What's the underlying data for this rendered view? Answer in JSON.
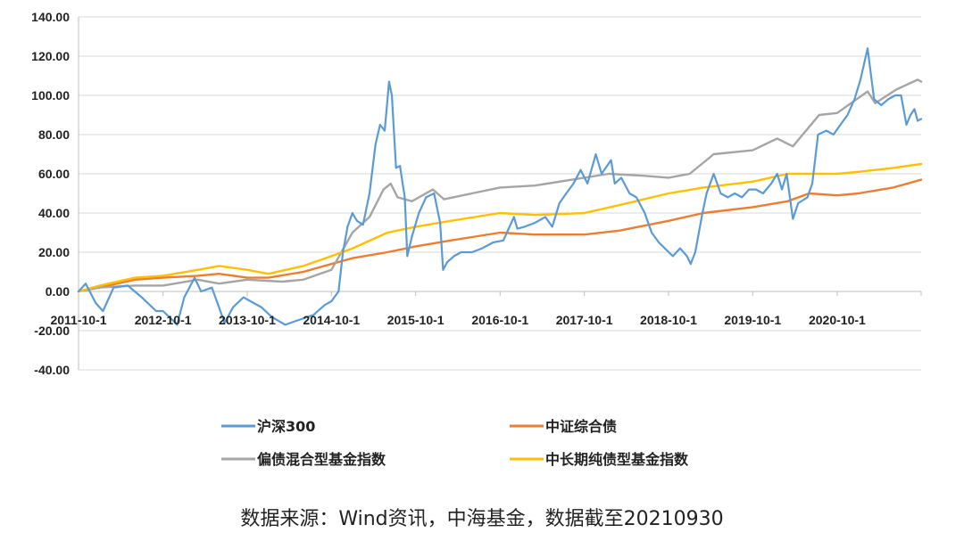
{
  "chart_data": {
    "type": "line",
    "ylim": [
      -40,
      140
    ],
    "y_ticks": [
      "140.00",
      "120.00",
      "100.00",
      "80.00",
      "60.00",
      "40.00",
      "20.00",
      "0.00",
      "-20.00",
      "-40.00"
    ],
    "y_tick_values": [
      140,
      120,
      100,
      80,
      60,
      40,
      20,
      0,
      -20,
      -40
    ],
    "x_range": [
      "2011-10-01",
      "2021-09-30"
    ],
    "x_ticks": [
      "2011-10-1",
      "2012-10-1",
      "2013-10-1",
      "2014-10-1",
      "2015-10-1",
      "2016-10-1",
      "2017-10-1",
      "2018-10-1",
      "2019-10-1",
      "2020-10-1"
    ],
    "x_tick_dates": [
      "2011-10-01",
      "2012-10-01",
      "2013-10-01",
      "2014-10-01",
      "2015-10-01",
      "2016-10-01",
      "2017-10-01",
      "2018-10-01",
      "2019-10-01",
      "2020-10-01"
    ],
    "grid": "horizontal",
    "legend_position": "bottom",
    "series": [
      {
        "name": "沪深300",
        "color": "#5B9BD5",
        "points": [
          [
            "2011-10-01",
            0
          ],
          [
            "2011-11-01",
            4
          ],
          [
            "2011-12-15",
            -6
          ],
          [
            "2012-01-15",
            -10
          ],
          [
            "2012-03-01",
            2
          ],
          [
            "2012-05-01",
            3
          ],
          [
            "2012-07-01",
            -3
          ],
          [
            "2012-09-01",
            -10
          ],
          [
            "2012-10-01",
            -10
          ],
          [
            "2012-11-15",
            -15
          ],
          [
            "2012-12-01",
            -17
          ],
          [
            "2013-01-01",
            -3
          ],
          [
            "2013-02-15",
            7
          ],
          [
            "2013-03-15",
            0
          ],
          [
            "2013-05-01",
            2
          ],
          [
            "2013-06-25",
            -16
          ],
          [
            "2013-08-01",
            -8
          ],
          [
            "2013-09-15",
            -3
          ],
          [
            "2013-10-15",
            -5
          ],
          [
            "2013-12-01",
            -8
          ],
          [
            "2014-01-15",
            -13
          ],
          [
            "2014-03-15",
            -17
          ],
          [
            "2014-05-01",
            -15
          ],
          [
            "2014-07-15",
            -12
          ],
          [
            "2014-09-01",
            -7
          ],
          [
            "2014-10-01",
            -5
          ],
          [
            "2014-11-01",
            0
          ],
          [
            "2014-11-20",
            20
          ],
          [
            "2014-12-10",
            33
          ],
          [
            "2014-12-31",
            40
          ],
          [
            "2015-01-20",
            36
          ],
          [
            "2015-02-15",
            34
          ],
          [
            "2015-03-15",
            50
          ],
          [
            "2015-04-10",
            75
          ],
          [
            "2015-04-30",
            85
          ],
          [
            "2015-05-20",
            82
          ],
          [
            "2015-06-08",
            107
          ],
          [
            "2015-06-20",
            100
          ],
          [
            "2015-07-08",
            63
          ],
          [
            "2015-07-25",
            64
          ],
          [
            "2015-08-15",
            48
          ],
          [
            "2015-08-26",
            18
          ],
          [
            "2015-09-15",
            28
          ],
          [
            "2015-10-15",
            40
          ],
          [
            "2015-11-15",
            48
          ],
          [
            "2015-12-20",
            50
          ],
          [
            "2016-01-15",
            35
          ],
          [
            "2016-01-28",
            11
          ],
          [
            "2016-02-15",
            15
          ],
          [
            "2016-03-15",
            18
          ],
          [
            "2016-04-15",
            20
          ],
          [
            "2016-06-01",
            20
          ],
          [
            "2016-07-15",
            22
          ],
          [
            "2016-09-01",
            25
          ],
          [
            "2016-10-15",
            26
          ],
          [
            "2016-11-30",
            38
          ],
          [
            "2016-12-15",
            32
          ],
          [
            "2017-01-15",
            33
          ],
          [
            "2017-03-01",
            35
          ],
          [
            "2017-04-15",
            38
          ],
          [
            "2017-05-15",
            33
          ],
          [
            "2017-06-15",
            45
          ],
          [
            "2017-07-15",
            50
          ],
          [
            "2017-08-15",
            55
          ],
          [
            "2017-09-15",
            62
          ],
          [
            "2017-10-15",
            55
          ],
          [
            "2017-11-20",
            70
          ],
          [
            "2017-12-15",
            60
          ],
          [
            "2018-01-25",
            67
          ],
          [
            "2018-02-10",
            55
          ],
          [
            "2018-03-10",
            58
          ],
          [
            "2018-04-15",
            50
          ],
          [
            "2018-05-15",
            48
          ],
          [
            "2018-06-20",
            40
          ],
          [
            "2018-07-20",
            30
          ],
          [
            "2018-08-20",
            25
          ],
          [
            "2018-09-15",
            22
          ],
          [
            "2018-10-20",
            18
          ],
          [
            "2018-11-20",
            22
          ],
          [
            "2018-12-20",
            18
          ],
          [
            "2019-01-05",
            14
          ],
          [
            "2019-01-25",
            20
          ],
          [
            "2019-02-25",
            40
          ],
          [
            "2019-03-15",
            50
          ],
          [
            "2019-04-15",
            60
          ],
          [
            "2019-05-15",
            50
          ],
          [
            "2019-06-15",
            48
          ],
          [
            "2019-07-15",
            50
          ],
          [
            "2019-08-15",
            48
          ],
          [
            "2019-09-15",
            52
          ],
          [
            "2019-10-15",
            52
          ],
          [
            "2019-11-15",
            50
          ],
          [
            "2019-12-20",
            55
          ],
          [
            "2020-01-15",
            60
          ],
          [
            "2020-02-05",
            52
          ],
          [
            "2020-02-25",
            60
          ],
          [
            "2020-03-23",
            37
          ],
          [
            "2020-04-15",
            45
          ],
          [
            "2020-05-25",
            48
          ],
          [
            "2020-06-15",
            55
          ],
          [
            "2020-07-10",
            80
          ],
          [
            "2020-08-15",
            82
          ],
          [
            "2020-09-15",
            80
          ],
          [
            "2020-10-15",
            85
          ],
          [
            "2020-11-15",
            90
          ],
          [
            "2020-12-15",
            98
          ],
          [
            "2021-01-10",
            108
          ],
          [
            "2021-02-10",
            124
          ],
          [
            "2021-02-25",
            110
          ],
          [
            "2021-03-10",
            98
          ],
          [
            "2021-04-10",
            95
          ],
          [
            "2021-05-10",
            98
          ],
          [
            "2021-06-10",
            100
          ],
          [
            "2021-07-05",
            100
          ],
          [
            "2021-07-28",
            85
          ],
          [
            "2021-08-15",
            90
          ],
          [
            "2021-09-01",
            93
          ],
          [
            "2021-09-15",
            87
          ],
          [
            "2021-09-30",
            88
          ]
        ]
      },
      {
        "name": "中证综合债",
        "color": "#ED7D31",
        "points": [
          [
            "2011-10-01",
            0
          ],
          [
            "2012-01-01",
            2
          ],
          [
            "2012-06-01",
            6
          ],
          [
            "2012-10-01",
            7
          ],
          [
            "2013-03-01",
            8
          ],
          [
            "2013-06-01",
            9
          ],
          [
            "2013-10-01",
            7
          ],
          [
            "2014-01-01",
            7
          ],
          [
            "2014-06-01",
            10
          ],
          [
            "2014-10-01",
            14
          ],
          [
            "2015-01-01",
            17
          ],
          [
            "2015-06-01",
            20
          ],
          [
            "2015-10-01",
            23
          ],
          [
            "2016-03-01",
            26
          ],
          [
            "2016-10-01",
            30
          ],
          [
            "2017-03-01",
            29
          ],
          [
            "2017-10-01",
            29
          ],
          [
            "2018-03-01",
            31
          ],
          [
            "2018-10-01",
            36
          ],
          [
            "2019-03-01",
            40
          ],
          [
            "2019-10-01",
            43
          ],
          [
            "2020-03-01",
            46
          ],
          [
            "2020-06-01",
            50
          ],
          [
            "2020-10-01",
            49
          ],
          [
            "2021-01-01",
            50
          ],
          [
            "2021-06-01",
            53
          ],
          [
            "2021-09-30",
            57
          ]
        ]
      },
      {
        "name": "偏债混合型基金指数",
        "color": "#A5A5A5",
        "points": [
          [
            "2011-10-01",
            0
          ],
          [
            "2012-01-01",
            2
          ],
          [
            "2012-06-01",
            3
          ],
          [
            "2012-10-01",
            3
          ],
          [
            "2013-03-01",
            6
          ],
          [
            "2013-06-01",
            4
          ],
          [
            "2013-10-01",
            6
          ],
          [
            "2014-03-01",
            5
          ],
          [
            "2014-06-01",
            6
          ],
          [
            "2014-10-01",
            11
          ],
          [
            "2014-12-31",
            30
          ],
          [
            "2015-03-15",
            38
          ],
          [
            "2015-05-15",
            52
          ],
          [
            "2015-06-15",
            55
          ],
          [
            "2015-07-15",
            48
          ],
          [
            "2015-09-15",
            46
          ],
          [
            "2015-12-15",
            52
          ],
          [
            "2016-02-01",
            47
          ],
          [
            "2016-06-01",
            50
          ],
          [
            "2016-10-01",
            53
          ],
          [
            "2017-03-01",
            54
          ],
          [
            "2017-10-01",
            58
          ],
          [
            "2018-01-15",
            60
          ],
          [
            "2018-06-15",
            59
          ],
          [
            "2018-10-01",
            58
          ],
          [
            "2019-01-01",
            60
          ],
          [
            "2019-04-15",
            70
          ],
          [
            "2019-10-01",
            72
          ],
          [
            "2020-01-15",
            78
          ],
          [
            "2020-03-23",
            74
          ],
          [
            "2020-07-15",
            90
          ],
          [
            "2020-10-01",
            91
          ],
          [
            "2021-02-10",
            102
          ],
          [
            "2021-03-15",
            96
          ],
          [
            "2021-06-15",
            103
          ],
          [
            "2021-09-15",
            108
          ],
          [
            "2021-09-30",
            107
          ]
        ]
      },
      {
        "name": "中长期纯债型基金指数",
        "color": "#FFC000",
        "points": [
          [
            "2011-10-01",
            0
          ],
          [
            "2012-01-01",
            3
          ],
          [
            "2012-06-01",
            7
          ],
          [
            "2012-10-01",
            8
          ],
          [
            "2013-03-01",
            11
          ],
          [
            "2013-06-01",
            13
          ],
          [
            "2013-10-01",
            11
          ],
          [
            "2014-01-01",
            9
          ],
          [
            "2014-06-01",
            13
          ],
          [
            "2014-10-01",
            18
          ],
          [
            "2015-01-01",
            22
          ],
          [
            "2015-06-01",
            30
          ],
          [
            "2015-10-01",
            33
          ],
          [
            "2016-03-01",
            36
          ],
          [
            "2016-10-01",
            40
          ],
          [
            "2017-03-01",
            39
          ],
          [
            "2017-10-01",
            40
          ],
          [
            "2018-03-01",
            44
          ],
          [
            "2018-10-01",
            50
          ],
          [
            "2019-03-01",
            53
          ],
          [
            "2019-10-01",
            56
          ],
          [
            "2020-03-01",
            60
          ],
          [
            "2020-06-01",
            60
          ],
          [
            "2020-10-01",
            60
          ],
          [
            "2021-01-01",
            61
          ],
          [
            "2021-06-01",
            63
          ],
          [
            "2021-09-30",
            65
          ]
        ]
      }
    ]
  },
  "source_note": "数据来源：Wind资讯，中海基金，数据截至20210930"
}
